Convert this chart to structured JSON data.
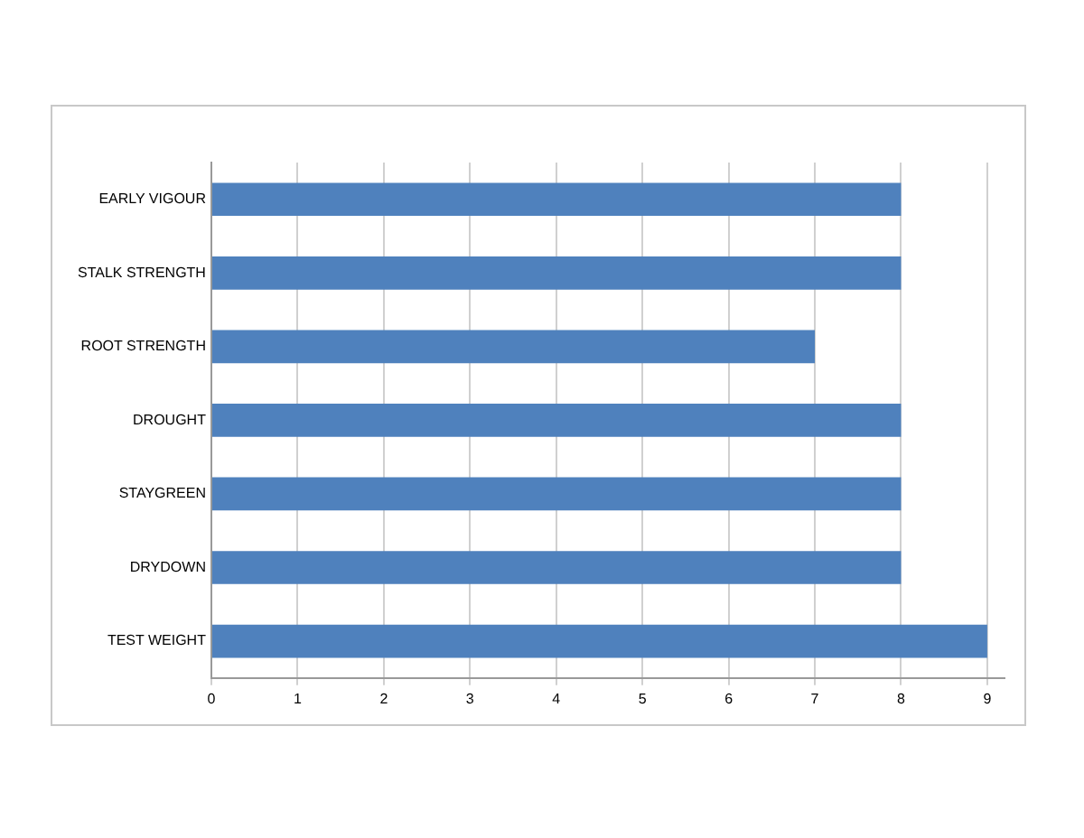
{
  "chart_data": {
    "type": "bar",
    "orientation": "horizontal",
    "categories": [
      "EARLY VIGOUR",
      "STALK STRENGTH",
      "ROOT STRENGTH",
      "DROUGHT",
      "STAYGREEN",
      "DRYDOWN",
      "TEST WEIGHT"
    ],
    "values": [
      8,
      8,
      7,
      8,
      8,
      8,
      9
    ],
    "color": "#4f81bd",
    "xlim": [
      0,
      9.2
    ],
    "xticks": [
      0,
      1,
      2,
      3,
      4,
      5,
      6,
      7,
      8,
      9
    ],
    "grid": "x",
    "legend": false
  }
}
